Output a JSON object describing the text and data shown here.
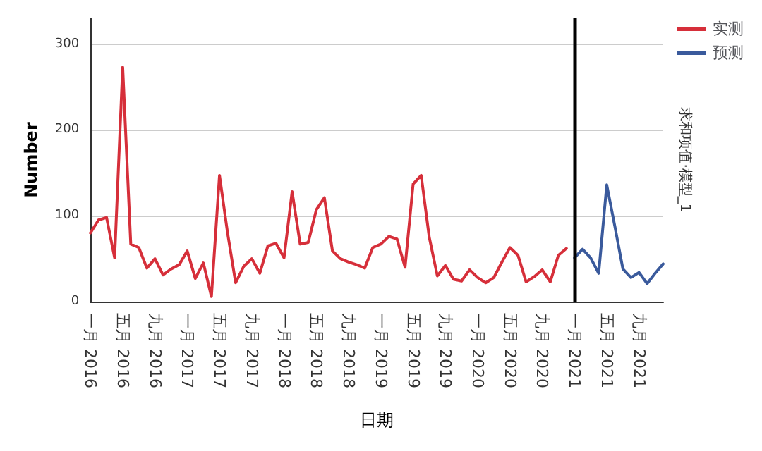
{
  "chart_data": {
    "type": "line",
    "xlabel": "日期",
    "ylabel": "Number",
    "y2label": "求和项值·模型_1",
    "categories": [
      "一月 2016",
      null,
      null,
      null,
      "五月 2016",
      null,
      null,
      null,
      "九月 2016",
      null,
      null,
      null,
      "一月 2017",
      null,
      null,
      null,
      "五月 2017",
      null,
      null,
      null,
      "九月 2017",
      null,
      null,
      null,
      "一月 2018",
      null,
      null,
      null,
      "五月 2018",
      null,
      null,
      null,
      "九月 2018",
      null,
      null,
      null,
      "一月 2019",
      null,
      null,
      null,
      "五月 2019",
      null,
      null,
      null,
      "九月 2019",
      null,
      null,
      null,
      "一月 2020",
      null,
      null,
      null,
      "五月 2020",
      null,
      null,
      null,
      "九月 2020",
      null,
      null,
      null,
      "一月 2021",
      null,
      null,
      null,
      "五月 2021",
      null,
      null,
      null,
      "九月 2021",
      null,
      null,
      null
    ],
    "series": [
      {
        "name": "实测",
        "color": "#d62f3a",
        "values": [
          80,
          95,
          98,
          51,
          273,
          67,
          63,
          39,
          50,
          31,
          38,
          43,
          59,
          27,
          45,
          6,
          147,
          80,
          22,
          41,
          50,
          33,
          65,
          68,
          51,
          128,
          67,
          69,
          107,
          121,
          59,
          50,
          46,
          43,
          39,
          63,
          67,
          76,
          73,
          40,
          137,
          147,
          75,
          30,
          42,
          26,
          24,
          37,
          28,
          22,
          28,
          46,
          63,
          54,
          23,
          29,
          37,
          23,
          54,
          62,
          null,
          null,
          null,
          null,
          null,
          null,
          null,
          null,
          null,
          null,
          null,
          null
        ]
      },
      {
        "name": "预测",
        "color": "#3a5a9c",
        "values": [
          null,
          null,
          null,
          null,
          null,
          null,
          null,
          null,
          null,
          null,
          null,
          null,
          null,
          null,
          null,
          null,
          null,
          null,
          null,
          null,
          null,
          null,
          null,
          null,
          null,
          null,
          null,
          null,
          null,
          null,
          null,
          null,
          null,
          null,
          null,
          null,
          null,
          null,
          null,
          null,
          null,
          null,
          null,
          null,
          null,
          null,
          null,
          null,
          null,
          null,
          null,
          null,
          null,
          null,
          null,
          null,
          null,
          null,
          null,
          null,
          51,
          61,
          51,
          33,
          136,
          88,
          38,
          28,
          34,
          21,
          33,
          44
        ]
      }
    ],
    "ylim": [
      0,
      330
    ],
    "yticks": [
      0,
      100,
      200,
      300
    ],
    "grid": "y",
    "legend": "top right",
    "line_style": "solid",
    "marker": "none",
    "ref_lines": [
      {
        "axis": "x",
        "value": "一月 2021",
        "color": "#000000"
      }
    ]
  }
}
